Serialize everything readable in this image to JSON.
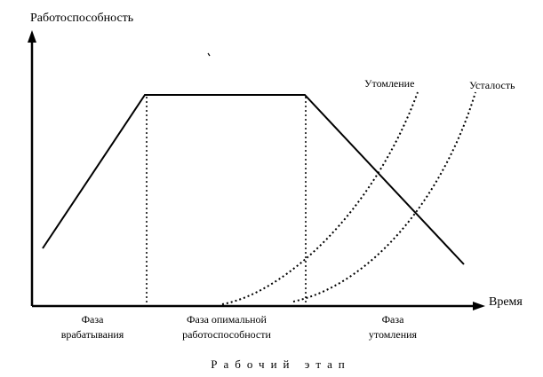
{
  "diagram": {
    "y_axis_label": "Работоспособность",
    "x_axis_label": "Время",
    "curves": {
      "fatigue_label": "Утомление",
      "tiredness_label": "Усталость"
    },
    "phases": {
      "warmup_line1": "Фаза",
      "warmup_line2": "врабатывания",
      "optimal_line1": "Фаза опимальной",
      "optimal_line2": "работоспособности",
      "fatigue_line1": "Фаза",
      "fatigue_line2": "утомления"
    },
    "caption": "Рабочий этап"
  }
}
